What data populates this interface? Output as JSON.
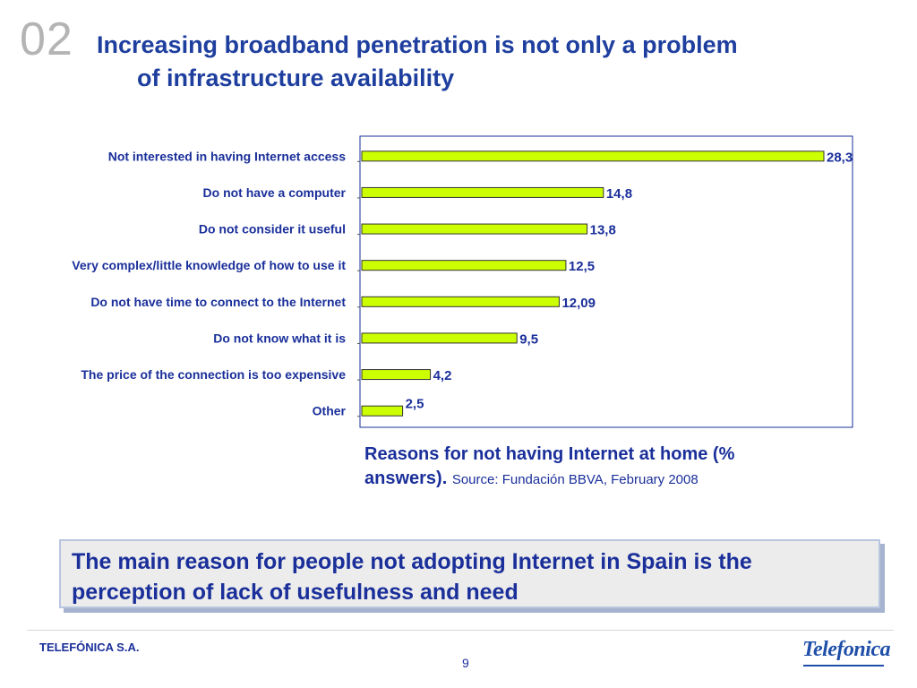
{
  "slide": {
    "number": "02",
    "title_line1": "Increasing broadband penetration is not only a problem",
    "title_line2": "of infrastructure availability"
  },
  "chart_data": {
    "type": "bar",
    "orientation": "horizontal",
    "categories": [
      "Not interested in having Internet access",
      "Do not have a computer",
      "Do not consider it useful",
      "Very complex/little knowledge of how to use it",
      "Do not have time to connect to the Internet",
      "Do not know what it is",
      "The price of the connection is too expensive",
      "Other"
    ],
    "values": [
      28.3,
      14.8,
      13.8,
      12.5,
      12.09,
      9.5,
      4.2,
      2.5
    ],
    "value_labels": [
      "28,3",
      "14,8",
      "13,8",
      "12,5",
      "12,09",
      "9,5",
      "4,2",
      "2,5"
    ],
    "bar_color": "#ccff00",
    "bar_border_color": "#333333",
    "frame_color": "#1a2f9a",
    "xlim": [
      0,
      28.3
    ],
    "grid": false,
    "legend": "none"
  },
  "caption": {
    "main": "Reasons for not having Internet at home (% answers).",
    "source": "Source: Fundación BBVA, February 2008"
  },
  "callout": {
    "text": "The main reason for people not adopting Internet in Spain is the perception  of lack of usefulness and need"
  },
  "footer": {
    "company": "TELEFÓNICA S.A.",
    "page": "9",
    "logo_text": "Telefonica"
  },
  "colors": {
    "title": "#1f3f9f",
    "text": "#1a2f9a",
    "slide_number": "#b4b4b4"
  }
}
